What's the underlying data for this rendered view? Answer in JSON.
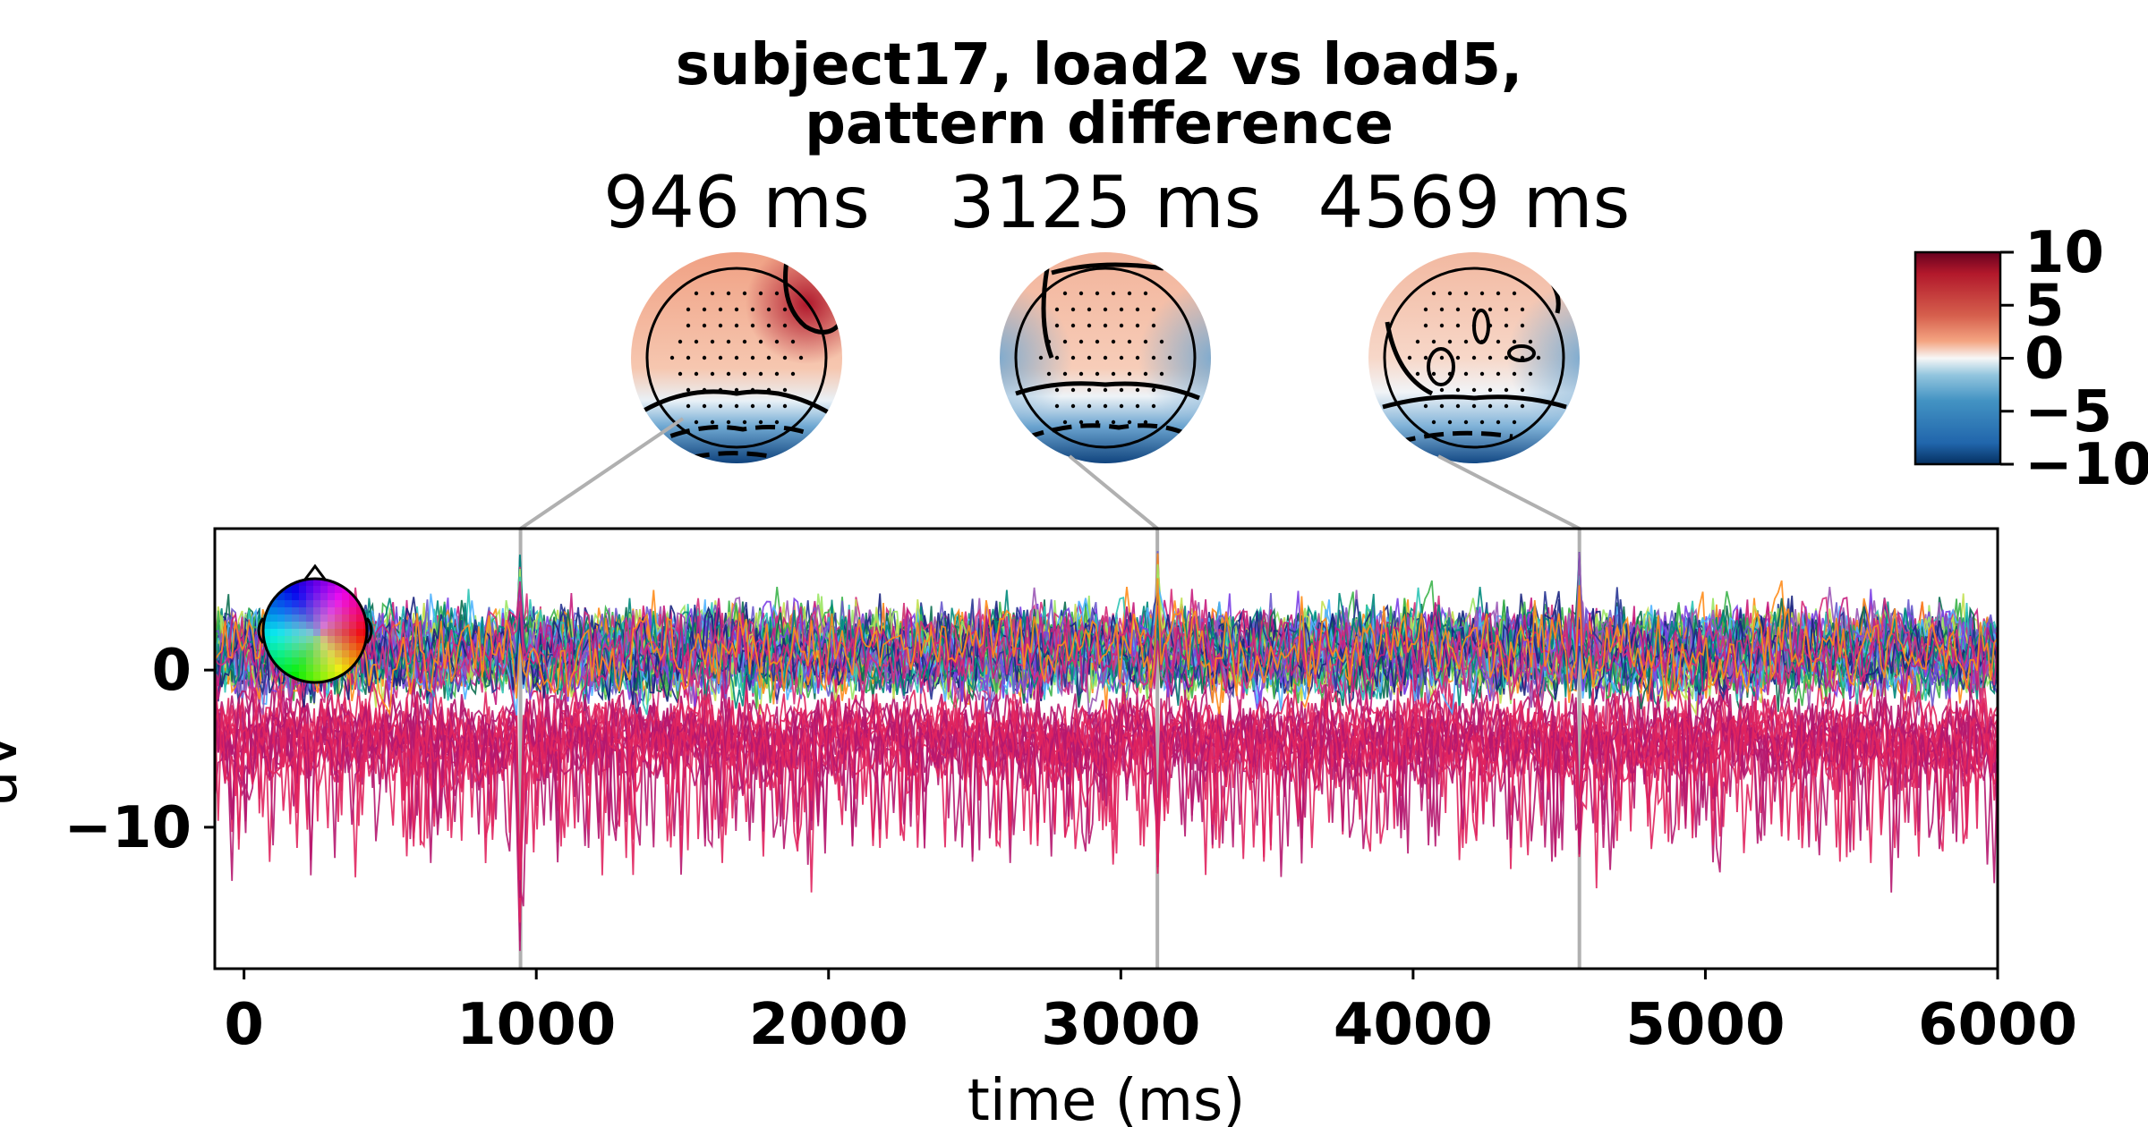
{
  "chart_data": {
    "type": "line",
    "title": "subject17, load2 vs load5,\npattern difference",
    "xlabel": "time (ms)",
    "ylabel": "uV",
    "xlim": [
      -100,
      6000
    ],
    "ylim": [
      -19,
      9
    ],
    "xticks": [
      0,
      1000,
      2000,
      3000,
      4000,
      5000,
      6000
    ],
    "yticks": [
      0,
      -10
    ],
    "n_channels": 64,
    "seed": 17,
    "baseline_amplitude": 1.8,
    "posterior_negative_offset": -3.5,
    "annotated_times_ms": [
      946,
      3125,
      4569
    ],
    "topomaps": [
      {
        "label": "946 ms",
        "time_ms": 946
      },
      {
        "label": "3125 ms",
        "time_ms": 3125
      },
      {
        "label": "4569 ms",
        "time_ms": 4569
      }
    ],
    "peak_values_at_annotations": [
      -18.5,
      -13.5,
      -12.0
    ],
    "colorbar": {
      "ticks": [
        "10",
        "5",
        "0",
        "−5",
        "−10"
      ],
      "range": [
        -10,
        10
      ],
      "colormap": "RdBu_r"
    },
    "colors": {
      "red": "#a50f26",
      "white": "#f7f7f7",
      "blue": "#08306b",
      "connector": "#b0b0b0"
    }
  }
}
